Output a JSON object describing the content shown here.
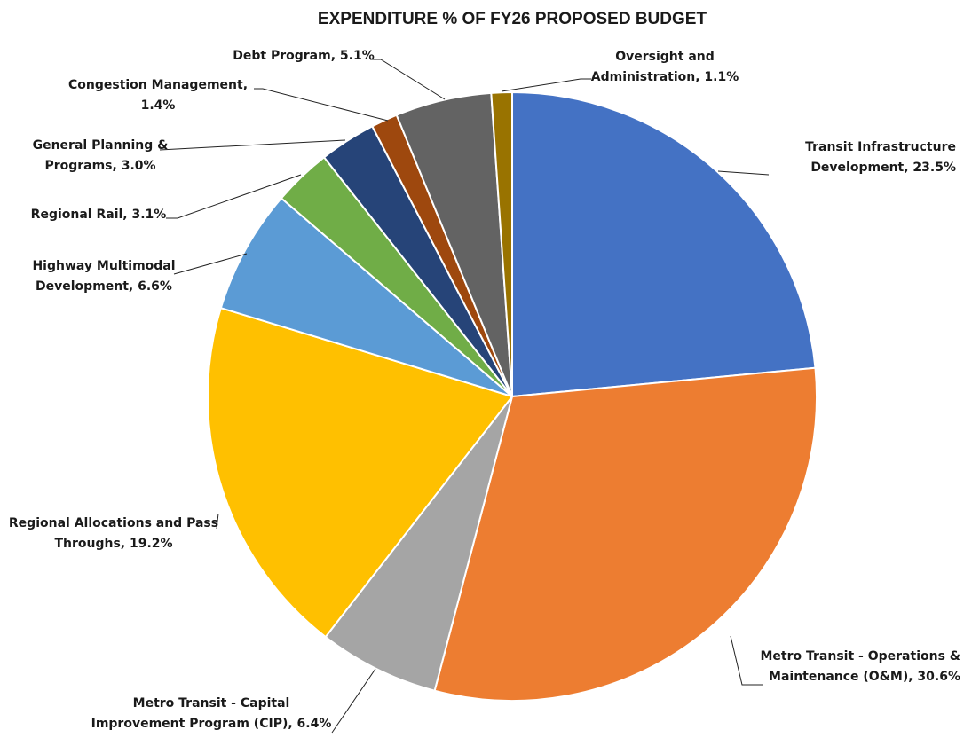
{
  "chart_data": {
    "type": "pie",
    "title": "EXPENDITURE % OF FY26 PROPOSED BUDGET",
    "slices": [
      {
        "label": "Transit Infrastructure Development, 23.5%",
        "value": 23.5,
        "color": "#4472C4"
      },
      {
        "label": "Metro Transit - Operations & Maintenance (O&M), 30.6%",
        "value": 30.6,
        "color": "#ED7D31"
      },
      {
        "label": "Metro Transit - Capital Improvement Program (CIP), 6.4%",
        "value": 6.4,
        "color": "#A5A5A5"
      },
      {
        "label": "Regional Allocations and Pass Throughs, 19.2%",
        "value": 19.2,
        "color": "#FFC000"
      },
      {
        "label": "Highway Multimodal Development, 6.6%",
        "value": 6.6,
        "color": "#5B9BD5"
      },
      {
        "label": "Regional Rail, 3.1%",
        "value": 3.1,
        "color": "#70AD47"
      },
      {
        "label": "General Planning & Programs, 3.0%",
        "value": 3.0,
        "color": "#264478"
      },
      {
        "label": "Congestion Management, 1.4%",
        "value": 1.4,
        "color": "#9E480E"
      },
      {
        "label": "Debt Program, 5.1%",
        "value": 5.1,
        "color": "#636363"
      },
      {
        "label": "Oversight and Administration, 1.1%",
        "value": 1.1,
        "color": "#997300"
      }
    ],
    "legend": "none"
  }
}
